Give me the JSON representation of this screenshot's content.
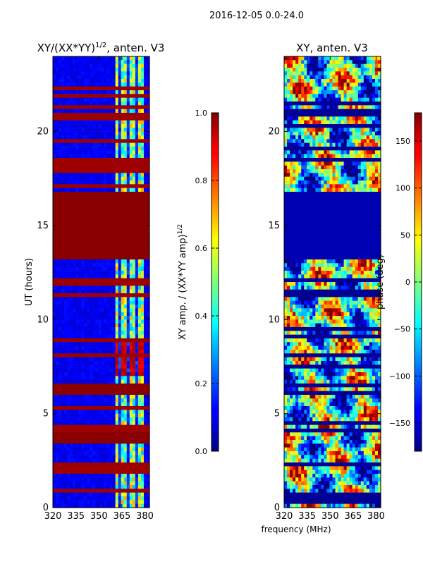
{
  "suptitle": "2016-12-05 0.0-24.0",
  "chart_data": [
    {
      "type": "heatmap",
      "title_main": "XY/(XX*YY)",
      "title_exponent": "1/2",
      "title_suffix": ", anten. V3",
      "xlabel": "",
      "ylabel": "UT (hours)",
      "xlim": [
        320,
        383
      ],
      "ylim": [
        0,
        24
      ],
      "x_ticks": [
        320,
        335,
        350,
        365,
        380
      ],
      "y_ticks": [
        0,
        5,
        10,
        15,
        20
      ],
      "colorbar": {
        "label_main": "XY amp. / (XX*YY amp)",
        "label_exponent": "1/2",
        "range": [
          0.0,
          1.0
        ],
        "ticks": [
          0.0,
          0.2,
          0.4,
          0.6,
          0.8,
          1.0
        ],
        "tick_labels": [
          "0.0",
          "0.2",
          "0.4",
          "0.6",
          "0.8",
          "1.0"
        ],
        "colormap": "jet"
      },
      "features": {
        "background_value": 0.08,
        "active_band_mhz": [
          360,
          380
        ],
        "active_band_value": 0.45,
        "saturated_blocks_hours": [
          [
            13.3,
            16.7
          ],
          [
            3.5,
            3.9
          ],
          [
            6.1,
            6.5
          ]
        ],
        "saturated_lines_hours": [
          0.9,
          1.9,
          2.2,
          4.2,
          5.3,
          8.1,
          8.9,
          11.3,
          12.0,
          17.1,
          18.0,
          18.4,
          19.5,
          20.8,
          21.3,
          21.9,
          22.3
        ],
        "hot_patch_hours": [
          7.0,
          8.8
        ],
        "hot_patch_value": 0.88
      }
    },
    {
      "type": "heatmap",
      "title": "XY, anten. V3",
      "xlabel": "frequency (MHz)",
      "ylabel": "",
      "xlim": [
        320,
        383
      ],
      "ylim": [
        0,
        24
      ],
      "x_ticks": [
        320,
        335,
        350,
        365,
        380
      ],
      "y_ticks": [
        0,
        5,
        10,
        15,
        20
      ],
      "colorbar": {
        "label": "phase (deg)",
        "range": [
          -180,
          180
        ],
        "ticks": [
          150,
          100,
          50,
          0,
          -50,
          -100,
          -150
        ],
        "tick_labels": [
          "150",
          "100",
          "50",
          "0",
          "−50",
          "−100",
          "−150"
        ],
        "colormap": "jet"
      },
      "features": {
        "flagged_block_hours": [
          13.3,
          16.7
        ],
        "flagged_value": -175,
        "dark_lines_hours": [
          0.4,
          0.7,
          2.0,
          2.4,
          4.1,
          4.5,
          6.2,
          6.5,
          7.5,
          8.0,
          9.2,
          9.5,
          11.4,
          12.2,
          17.0,
          18.0,
          18.5,
          19.2,
          20.3,
          20.9,
          21.2,
          21.5,
          22.0
        ]
      }
    }
  ]
}
